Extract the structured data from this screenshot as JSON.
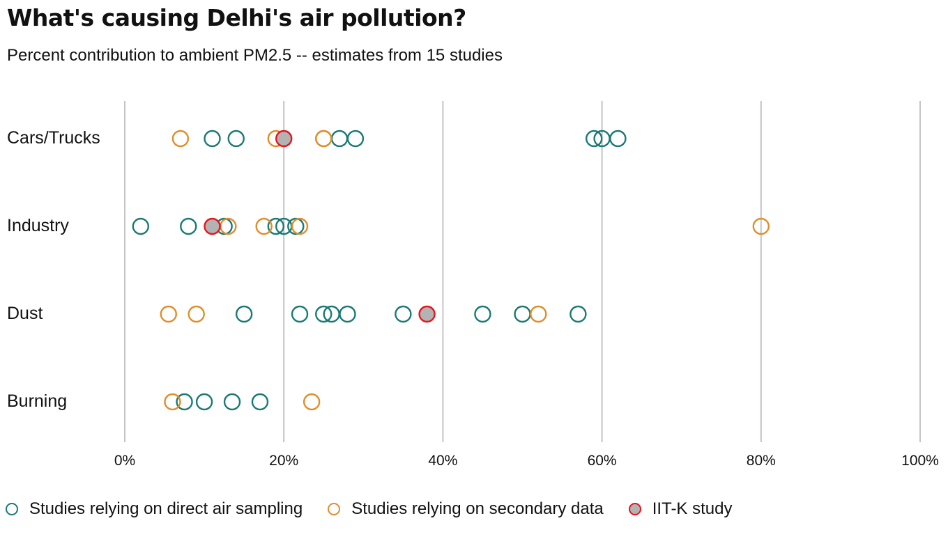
{
  "title": "What's causing Delhi's air pollution?",
  "subtitle": "Percent contribution to ambient PM2.5 -- estimates from 15 studies",
  "colors": {
    "direct": "#1a7a73",
    "secondary": "#e08e2b",
    "iitk_fill": "#b3b3b3",
    "iitk_stroke": "#e8141b",
    "grid": "#c4c4c4"
  },
  "legend": [
    {
      "key": "direct",
      "label": "Studies relying on direct air sampling"
    },
    {
      "key": "secondary",
      "label": "Studies relying on secondary data"
    },
    {
      "key": "iitk",
      "label": "IIT-K study"
    }
  ],
  "chart_data": {
    "type": "scatter",
    "title": "What's causing Delhi's air pollution?",
    "subtitle": "Percent contribution to ambient PM2.5 -- estimates from 15 studies",
    "categories": [
      "Cars/Trucks",
      "Industry",
      "Dust",
      "Burning"
    ],
    "xlim": [
      0,
      100
    ],
    "xticks": [
      0,
      20,
      40,
      60,
      80,
      100
    ],
    "xtick_labels": [
      "0%",
      "20%",
      "40%",
      "60%",
      "80%",
      "100%"
    ],
    "grid": "vertical",
    "legend_position": "bottom",
    "series": [
      {
        "name": "Studies relying on direct air sampling",
        "key": "direct",
        "points": [
          {
            "category": "Cars/Trucks",
            "x": [
              11,
              14,
              27,
              29,
              59,
              60,
              62
            ]
          },
          {
            "category": "Industry",
            "x": [
              2,
              8,
              12.5,
              19,
              20,
              21.5
            ]
          },
          {
            "category": "Dust",
            "x": [
              15,
              22,
              25,
              26,
              28,
              35,
              45,
              50,
              57
            ]
          },
          {
            "category": "Burning",
            "x": [
              7.5,
              10,
              13.5,
              17
            ]
          }
        ]
      },
      {
        "name": "Studies relying on secondary data",
        "key": "secondary",
        "points": [
          {
            "category": "Cars/Trucks",
            "x": [
              7,
              19,
              25,
              25
            ]
          },
          {
            "category": "Industry",
            "x": [
              13,
              17.5,
              22,
              80
            ]
          },
          {
            "category": "Dust",
            "x": [
              5.5,
              9,
              52
            ]
          },
          {
            "category": "Burning",
            "x": [
              6,
              23.5
            ]
          }
        ]
      },
      {
        "name": "IIT-K study",
        "key": "iitk",
        "points": [
          {
            "category": "Cars/Trucks",
            "x": [
              20
            ]
          },
          {
            "category": "Industry",
            "x": [
              11
            ]
          },
          {
            "category": "Dust",
            "x": [
              38
            ]
          }
        ]
      }
    ]
  }
}
